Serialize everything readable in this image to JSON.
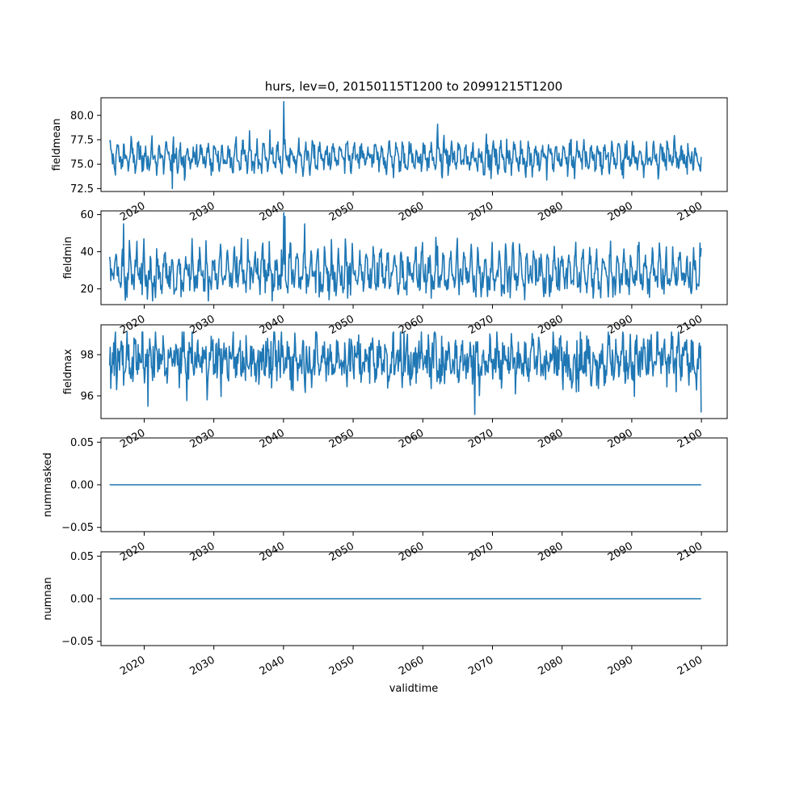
{
  "chart_data": {
    "type": "line",
    "title": "hurs, lev=0, 20150115T1200 to 20991215T1200",
    "xlabel": "validtime",
    "x_tick_labels": [
      "2020",
      "2030",
      "2040",
      "2050",
      "2060",
      "2070",
      "2080",
      "2090",
      "2100"
    ],
    "x_range": [
      "2015-01-15",
      "2099-12-15"
    ],
    "xlim": [
      2013.8,
      2103.7
    ],
    "line_color": "#1f77b4",
    "n_points": 1020,
    "panels": [
      {
        "ylabel": "fieldmean",
        "ylim": [
          72.2,
          81.8
        ],
        "y_ticks": [
          "72.5",
          "75.0",
          "77.5",
          "80.0"
        ],
        "summary": {
          "min": 72.5,
          "max": 81.4,
          "typical_range": [
            74.0,
            77.5
          ]
        },
        "peaks": [
          {
            "x": "2040-01",
            "y": 81.4
          },
          {
            "x": "2038-01",
            "y": 78.5
          },
          {
            "x": "2062-01",
            "y": 79.1
          }
        ],
        "values": []
      },
      {
        "ylabel": "fieldmin",
        "ylim": [
          11.5,
          62
        ],
        "y_ticks": [
          "20",
          "40",
          "60"
        ],
        "summary": {
          "min": 13.5,
          "max": 61,
          "typical_range": [
            18,
            45
          ]
        },
        "peaks": [
          {
            "x": "2040-01",
            "y": 61
          },
          {
            "x": "2017-01",
            "y": 55
          },
          {
            "x": "2043-01",
            "y": 55
          }
        ],
        "values": []
      },
      {
        "ylabel": "fieldmax",
        "ylim": [
          94.9,
          99.45
        ],
        "y_ticks": [
          "96",
          "98"
        ],
        "summary": {
          "min": 95.1,
          "max": 99.1,
          "typical_range": [
            96.5,
            99.0
          ]
        },
        "values": []
      },
      {
        "ylabel": "nummasked",
        "ylim": [
          -0.055,
          0.055
        ],
        "y_ticks": [
          "0.05",
          "0.00",
          "−0.05"
        ],
        "constant": 0.0,
        "values": []
      },
      {
        "ylabel": "numnan",
        "ylim": [
          -0.055,
          0.055
        ],
        "y_ticks": [
          "0.05",
          "0.00",
          "−0.05"
        ],
        "constant": 0.0,
        "values": []
      }
    ]
  }
}
